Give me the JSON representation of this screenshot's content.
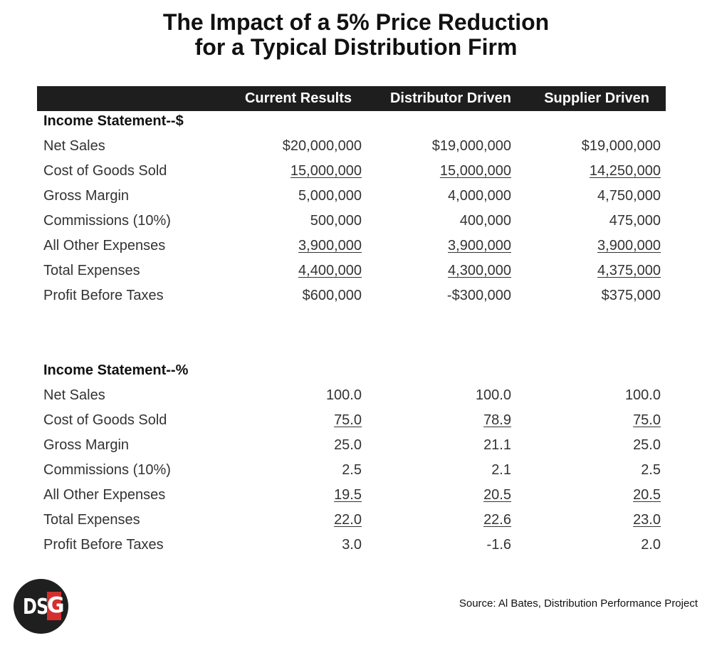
{
  "title": {
    "line1": "The Impact of a 5% Price Reduction",
    "line2": "for a Typical Distribution Firm"
  },
  "columns": [
    "Current Results",
    "Distributor Driven",
    "Supplier Driven"
  ],
  "sections": [
    {
      "heading": "Income Statement--$",
      "rows": [
        {
          "label": "Net Sales",
          "values": [
            "$20,000,000",
            "$19,000,000",
            "$19,000,000"
          ],
          "underlined": false
        },
        {
          "label": "Cost of Goods Sold",
          "values": [
            "15,000,000",
            "15,000,000",
            "14,250,000"
          ],
          "underlined": true
        },
        {
          "label": "Gross Margin",
          "values": [
            "5,000,000",
            "4,000,000",
            "4,750,000"
          ],
          "underlined": false
        },
        {
          "label": "Commissions (10%)",
          "values": [
            "500,000",
            "400,000",
            "475,000"
          ],
          "underlined": false
        },
        {
          "label": "All Other Expenses",
          "values": [
            "3,900,000",
            "3,900,000",
            "3,900,000"
          ],
          "underlined": true
        },
        {
          "label": "Total Expenses",
          "values": [
            "4,400,000",
            "4,300,000",
            "4,375,000"
          ],
          "underlined": true
        },
        {
          "label": "Profit Before Taxes",
          "values": [
            "$600,000",
            "-$300,000",
            "$375,000"
          ],
          "underlined": false
        }
      ]
    },
    {
      "heading": "Income Statement--%",
      "rows": [
        {
          "label": "Net Sales",
          "values": [
            "100.0",
            "100.0",
            "100.0"
          ],
          "underlined": false
        },
        {
          "label": "Cost of Goods Sold",
          "values": [
            "75.0",
            "78.9",
            "75.0"
          ],
          "underlined": true
        },
        {
          "label": "Gross Margin",
          "values": [
            "25.0",
            "21.1",
            "25.0"
          ],
          "underlined": false
        },
        {
          "label": "Commissions (10%)",
          "values": [
            "2.5",
            "2.1",
            "2.5"
          ],
          "underlined": false
        },
        {
          "label": "All Other Expenses",
          "values": [
            "19.5",
            "20.5",
            "20.5"
          ],
          "underlined": true
        },
        {
          "label": "Total Expenses",
          "values": [
            "22.0",
            "22.6",
            "23.0"
          ],
          "underlined": true
        },
        {
          "label": "Profit Before Taxes",
          "values": [
            "3.0",
            "-1.6",
            "2.0"
          ],
          "underlined": false
        }
      ]
    }
  ],
  "logo": {
    "text": "DSG",
    "accent": "#d32f2f"
  },
  "source": "Source: Al Bates, Distribution Performance Project"
}
